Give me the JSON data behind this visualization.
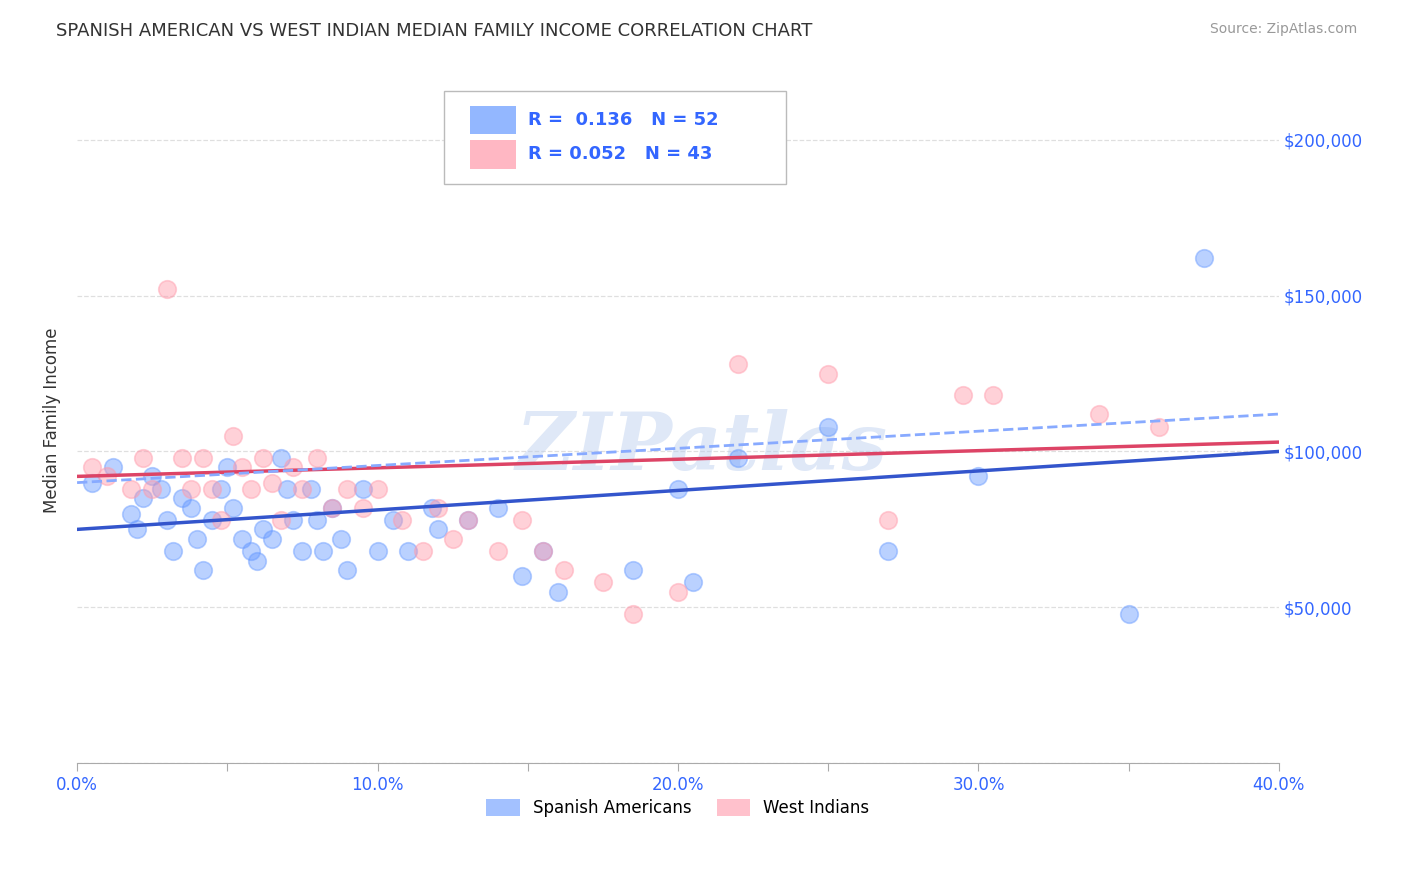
{
  "title": "SPANISH AMERICAN VS WEST INDIAN MEDIAN FAMILY INCOME CORRELATION CHART",
  "source": "Source: ZipAtlas.com",
  "ylabel": "Median Family Income",
  "xlim": [
    0.0,
    0.4
  ],
  "ylim": [
    0,
    220000
  ],
  "yticks": [
    0,
    50000,
    100000,
    150000,
    200000
  ],
  "ytick_labels": [
    "",
    "$50,000",
    "$100,000",
    "$150,000",
    "$200,000"
  ],
  "xticks": [
    0.0,
    0.05,
    0.1,
    0.15,
    0.2,
    0.25,
    0.3,
    0.35,
    0.4
  ],
  "xtick_labels": [
    "0.0%",
    "",
    "10.0%",
    "",
    "20.0%",
    "",
    "30.0%",
    "",
    "40.0%"
  ],
  "legend_r1": "R =  0.136",
  "legend_n1": "N = 52",
  "legend_r2": "R = 0.052",
  "legend_n2": "N = 43",
  "label1": "Spanish Americans",
  "label2": "West Indians",
  "color_blue": "#6699ff",
  "color_pink": "#ff99aa",
  "color_line_blue": "#3355cc",
  "color_line_pink": "#dd4466",
  "color_line_dash": "#88aaff",
  "color_axis_tick": "#3366ff",
  "watermark": "ZIPatlas",
  "blue_scatter_x": [
    0.005,
    0.012,
    0.018,
    0.02,
    0.022,
    0.025,
    0.028,
    0.03,
    0.032,
    0.035,
    0.038,
    0.04,
    0.042,
    0.045,
    0.048,
    0.05,
    0.052,
    0.055,
    0.058,
    0.06,
    0.062,
    0.065,
    0.068,
    0.07,
    0.072,
    0.075,
    0.078,
    0.08,
    0.082,
    0.085,
    0.088,
    0.09,
    0.095,
    0.1,
    0.105,
    0.11,
    0.118,
    0.12,
    0.13,
    0.14,
    0.148,
    0.155,
    0.16,
    0.185,
    0.2,
    0.205,
    0.22,
    0.25,
    0.27,
    0.3,
    0.35,
    0.375
  ],
  "blue_scatter_y": [
    90000,
    95000,
    80000,
    75000,
    85000,
    92000,
    88000,
    78000,
    68000,
    85000,
    82000,
    72000,
    62000,
    78000,
    88000,
    95000,
    82000,
    72000,
    68000,
    65000,
    75000,
    72000,
    98000,
    88000,
    78000,
    68000,
    88000,
    78000,
    68000,
    82000,
    72000,
    62000,
    88000,
    68000,
    78000,
    68000,
    82000,
    75000,
    78000,
    82000,
    60000,
    68000,
    55000,
    62000,
    88000,
    58000,
    98000,
    108000,
    68000,
    92000,
    48000,
    162000
  ],
  "pink_scatter_x": [
    0.005,
    0.01,
    0.018,
    0.022,
    0.025,
    0.03,
    0.035,
    0.038,
    0.042,
    0.045,
    0.048,
    0.052,
    0.055,
    0.058,
    0.062,
    0.065,
    0.068,
    0.072,
    0.075,
    0.08,
    0.085,
    0.09,
    0.095,
    0.1,
    0.108,
    0.115,
    0.12,
    0.125,
    0.13,
    0.14,
    0.148,
    0.155,
    0.162,
    0.175,
    0.185,
    0.2,
    0.22,
    0.25,
    0.27,
    0.295,
    0.305,
    0.34,
    0.36
  ],
  "pink_scatter_y": [
    95000,
    92000,
    88000,
    98000,
    88000,
    152000,
    98000,
    88000,
    98000,
    88000,
    78000,
    105000,
    95000,
    88000,
    98000,
    90000,
    78000,
    95000,
    88000,
    98000,
    82000,
    88000,
    82000,
    88000,
    78000,
    68000,
    82000,
    72000,
    78000,
    68000,
    78000,
    68000,
    62000,
    58000,
    48000,
    55000,
    128000,
    125000,
    78000,
    118000,
    118000,
    112000,
    108000
  ],
  "blue_line_x": [
    0.0,
    0.4
  ],
  "blue_line_y": [
    75000,
    100000
  ],
  "pink_line_x": [
    0.0,
    0.4
  ],
  "pink_line_y": [
    92000,
    103000
  ],
  "dashed_line_x": [
    0.0,
    0.4
  ],
  "dashed_line_y": [
    90000,
    112000
  ],
  "bg_color": "#ffffff",
  "grid_color": "#d8d8d8",
  "title_color": "#333333",
  "axis_label_color": "#3366ff"
}
